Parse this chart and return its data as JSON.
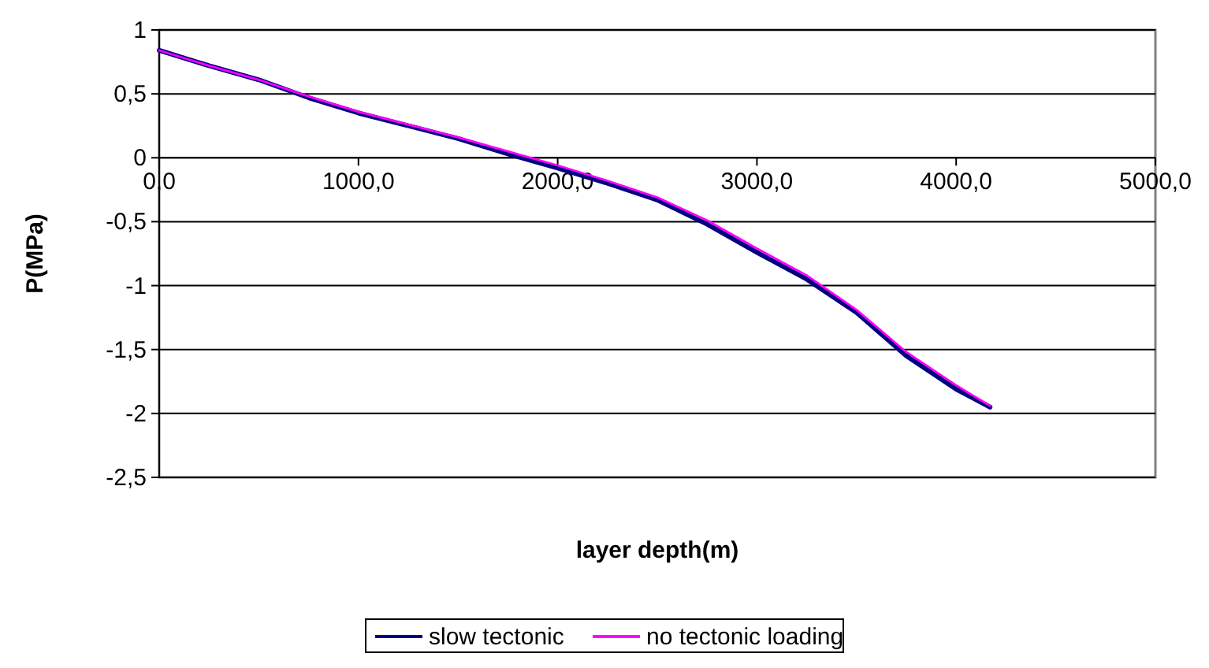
{
  "chart_data": {
    "type": "line",
    "xlabel": "layer depth(m)",
    "ylabel": "P(MPa)",
    "x": [
      0,
      250,
      500,
      750,
      1000,
      1250,
      1500,
      1750,
      2000,
      2250,
      2500,
      2750,
      3000,
      3250,
      3500,
      3750,
      4000,
      4170
    ],
    "series": [
      {
        "name": "slow  tectonic",
        "color": "#000080",
        "values": [
          0.84,
          0.72,
          0.61,
          0.47,
          0.35,
          0.25,
          0.15,
          0.03,
          -0.08,
          -0.2,
          -0.33,
          -0.52,
          -0.74,
          -0.95,
          -1.21,
          -1.55,
          -1.81,
          -1.95
        ]
      },
      {
        "name": "no tectonic loading",
        "color": "#ff00ff",
        "values": [
          0.84,
          0.72,
          0.61,
          0.48,
          0.36,
          0.26,
          0.16,
          0.05,
          -0.06,
          -0.18,
          -0.31,
          -0.49,
          -0.71,
          -0.92,
          -1.19,
          -1.52,
          -1.78,
          -1.94
        ]
      }
    ],
    "xlim": [
      0,
      5000
    ],
    "xticks": [
      {
        "value": 0,
        "label": "0,0"
      },
      {
        "value": 1000,
        "label": "1000,0"
      },
      {
        "value": 2000,
        "label": "2000,0"
      },
      {
        "value": 3000,
        "label": "3000,0"
      },
      {
        "value": 4000,
        "label": "4000,0"
      },
      {
        "value": 5000,
        "label": "5000,0"
      }
    ],
    "ylim": [
      -2.5,
      1
    ],
    "yticks": [
      {
        "value": -2.5,
        "label": "-2,5"
      },
      {
        "value": -2,
        "label": "-2"
      },
      {
        "value": -1.5,
        "label": "-1,5"
      },
      {
        "value": -1,
        "label": "-1"
      },
      {
        "value": -0.5,
        "label": "-0,5"
      },
      {
        "value": 0,
        "label": "0"
      },
      {
        "value": 0.5,
        "label": "0,5"
      },
      {
        "value": 1,
        "label": "1"
      }
    ],
    "grid": "y",
    "legend": "bottom",
    "line_style": "solid",
    "marker": "none"
  }
}
